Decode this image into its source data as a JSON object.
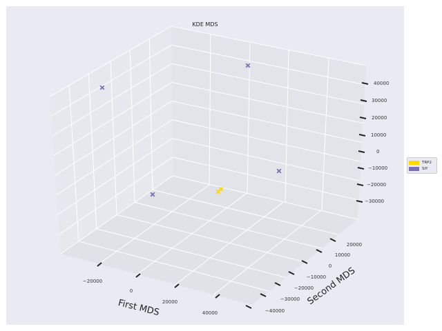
{
  "chart_data": {
    "type": "scatter",
    "title": "KDE MDS",
    "xlabel": "First MDS",
    "ylabel": "Second MDS",
    "zlabel": "",
    "xticks": [
      "−20000",
      "0",
      "20000",
      "40000"
    ],
    "yticks": [
      "20000",
      "10000",
      "0",
      "−10000",
      "−20000",
      "−30000",
      "−40000"
    ],
    "zticks": [
      "40000",
      "30000",
      "20000",
      "10000",
      "0",
      "−10000",
      "−20000",
      "−30000"
    ],
    "legend_position": "right",
    "series": [
      {
        "name": "TRP2",
        "color": "#ffd700",
        "marker": "x",
        "points": [
          {
            "x": 20000,
            "y": -6000,
            "z": -15000
          },
          {
            "x": 21000,
            "y": -5000,
            "z": -14000
          }
        ]
      },
      {
        "name": "SIY",
        "color": "#7b6fb3",
        "marker": "x",
        "points": [
          {
            "x": -25000,
            "y": 32000,
            "z": 45000
          },
          {
            "x": 25000,
            "y": 30000,
            "z": 45000
          },
          {
            "x": -10000,
            "y": -20000,
            "z": -22000
          },
          {
            "x": 42000,
            "y": 5000,
            "z": 5000
          }
        ]
      }
    ]
  }
}
